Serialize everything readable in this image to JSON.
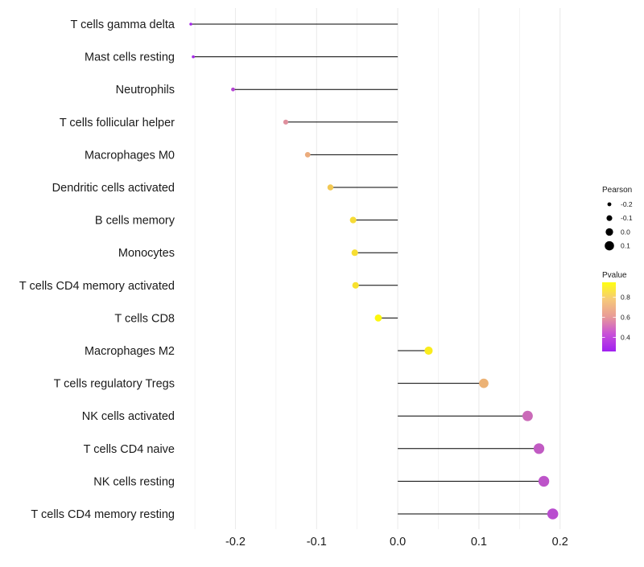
{
  "chart_data": {
    "type": "lollipop",
    "title": "",
    "xlabel": "",
    "ylabel": "",
    "xlim": [
      -0.262,
      0.232
    ],
    "x_ticks": [
      -0.2,
      -0.1,
      0.0,
      0.1,
      0.2
    ],
    "x_tick_labels": [
      "-0.2",
      "-0.1",
      "0.0",
      "0.1",
      "0.2"
    ],
    "x_minor_ticks": [
      -0.25,
      -0.15,
      -0.05,
      0.05,
      0.15
    ],
    "grid": true,
    "categories": [
      "T cells gamma delta",
      "Mast cells resting",
      "Neutrophils",
      "T cells follicular helper",
      "Macrophages M0",
      "Dendritic cells activated",
      "B cells memory",
      "Monocytes",
      "T cells CD4 memory activated",
      "T cells CD8",
      "Macrophages M2",
      "T cells regulatory  Tregs ",
      "NK cells activated",
      "T cells CD4 naive",
      "NK cells resting",
      "T cells CD4 memory resting"
    ],
    "pearson": [
      -0.255,
      -0.252,
      -0.203,
      -0.138,
      -0.111,
      -0.083,
      -0.055,
      -0.053,
      -0.052,
      -0.024,
      0.038,
      0.106,
      0.16,
      0.174,
      0.18,
      0.191
    ],
    "pvalue": [
      0.28,
      0.29,
      0.36,
      0.56,
      0.65,
      0.75,
      0.82,
      0.83,
      0.84,
      0.92,
      0.88,
      0.67,
      0.46,
      0.42,
      0.4,
      0.38
    ],
    "legend": {
      "size_title": "Pearson",
      "size_labels": [
        "-0.2",
        "-0.1",
        "0.0",
        "0.1"
      ],
      "size_values": [
        -0.2,
        -0.1,
        0.0,
        0.1
      ],
      "color_title": "Pvalue",
      "color_labels": [
        "0.8",
        "0.6",
        "0.4"
      ],
      "color_values": [
        0.8,
        0.6,
        0.4
      ],
      "color_range": [
        0.26,
        0.95
      ],
      "position": "right"
    },
    "colors": {
      "low": "#a020f0",
      "mid": "#e8a090",
      "high": "#ffff00",
      "segment": "#000000",
      "grid": "#ebebeb"
    }
  }
}
